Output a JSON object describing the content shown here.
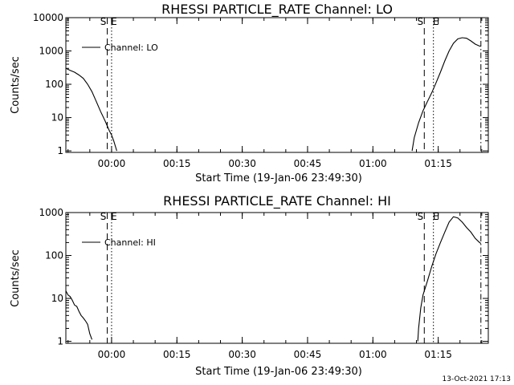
{
  "footer": {
    "timestamp": "13-Oct-2021 17:13"
  },
  "chart_data": [
    {
      "type": "line",
      "title": "RHESSI PARTICLE_RATE Channel: LO",
      "xlabel": "Start Time (19-Jan-06 23:49:30)",
      "ylabel": "Counts/sec",
      "y_scale": "log",
      "ylim": [
        0.9,
        10000
      ],
      "xlim_minutes_from_start": [
        0,
        97
      ],
      "x_tick_labels": [
        "00:00",
        "00:15",
        "00:30",
        "00:45",
        "01:00",
        "01:15"
      ],
      "y_tick_labels": [
        "1",
        "10",
        "100",
        "1000",
        "10000"
      ],
      "legend": {
        "entries": [
          "Channel: LO"
        ],
        "placement": "top-left"
      },
      "markers": [
        {
          "label": "S",
          "style": "dashed",
          "x_minutes": 9.5
        },
        {
          "label": "E",
          "style": "dotted",
          "x_minutes": 10.5
        },
        {
          "label": "S",
          "style": "dashed",
          "x_minutes": 82.3
        },
        {
          "label": "E",
          "style": "dotted",
          "x_minutes": 84.4
        },
        {
          "label": "",
          "style": "dashdot",
          "x_minutes": 95.3
        }
      ],
      "series": [
        {
          "name": "Channel: LO",
          "segments": [
            [
              [
                0,
                300
              ],
              [
                1,
                260
              ],
              [
                2,
                230
              ],
              [
                3,
                190
              ],
              [
                4,
                150
              ],
              [
                5,
                100
              ],
              [
                6,
                60
              ],
              [
                7,
                30
              ],
              [
                8,
                15
              ],
              [
                9,
                8
              ],
              [
                10,
                4
              ],
              [
                10.5,
                3
              ],
              [
                11,
                2
              ],
              [
                11.7,
                1
              ]
            ],
            [
              [
                79.5,
                1
              ],
              [
                80,
                2.5
              ],
              [
                81,
                7
              ],
              [
                82,
                16
              ],
              [
                83,
                30
              ],
              [
                84,
                55
              ],
              [
                85,
                110
              ],
              [
                86,
                230
              ],
              [
                87,
                500
              ],
              [
                88,
                1000
              ],
              [
                89,
                1700
              ],
              [
                90,
                2300
              ],
              [
                91,
                2500
              ],
              [
                92,
                2400
              ],
              [
                93,
                2000
              ],
              [
                94,
                1600
              ],
              [
                95,
                1400
              ],
              [
                95.3,
                1400
              ]
            ]
          ]
        }
      ]
    },
    {
      "type": "line",
      "title": "RHESSI PARTICLE_RATE Channel: HI",
      "xlabel": "Start Time (19-Jan-06 23:49:30)",
      "ylabel": "Counts/sec",
      "y_scale": "log",
      "ylim": [
        0.9,
        1000
      ],
      "xlim_minutes_from_start": [
        0,
        97
      ],
      "x_tick_labels": [
        "00:00",
        "00:15",
        "00:30",
        "00:45",
        "01:00",
        "01:15"
      ],
      "y_tick_labels": [
        "1",
        "10",
        "100",
        "1000"
      ],
      "legend": {
        "entries": [
          "Channel: HI"
        ],
        "placement": "top-left"
      },
      "markers": [
        {
          "label": "S",
          "style": "dashed",
          "x_minutes": 9.5
        },
        {
          "label": "E",
          "style": "dotted",
          "x_minutes": 10.5
        },
        {
          "label": "S",
          "style": "dashed",
          "x_minutes": 82.3
        },
        {
          "label": "E",
          "style": "dotted",
          "x_minutes": 84.4
        },
        {
          "label": "",
          "style": "dashdot",
          "x_minutes": 95.3
        }
      ],
      "series": [
        {
          "name": "Channel: HI",
          "segments": [
            [
              [
                0,
                15
              ],
              [
                0.5,
                12
              ],
              [
                1,
                11
              ],
              [
                1.5,
                9
              ],
              [
                2,
                7
              ],
              [
                2.5,
                6.5
              ],
              [
                3,
                5
              ],
              [
                3.5,
                4
              ],
              [
                4,
                3.5
              ],
              [
                4.5,
                3
              ],
              [
                5,
                2.5
              ],
              [
                5.5,
                1.5
              ],
              [
                6,
                1.1
              ]
            ],
            [
              [
                80.8,
                1
              ],
              [
                81,
                2
              ],
              [
                81.5,
                6
              ],
              [
                82,
                12
              ],
              [
                83,
                25
              ],
              [
                84,
                55
              ],
              [
                85,
                110
              ],
              [
                86,
                200
              ],
              [
                87,
                350
              ],
              [
                88,
                600
              ],
              [
                89,
                800
              ],
              [
                90,
                750
              ],
              [
                91,
                600
              ],
              [
                92,
                450
              ],
              [
                93,
                350
              ],
              [
                94,
                250
              ],
              [
                95,
                200
              ],
              [
                95.3,
                190
              ]
            ]
          ]
        }
      ]
    }
  ]
}
